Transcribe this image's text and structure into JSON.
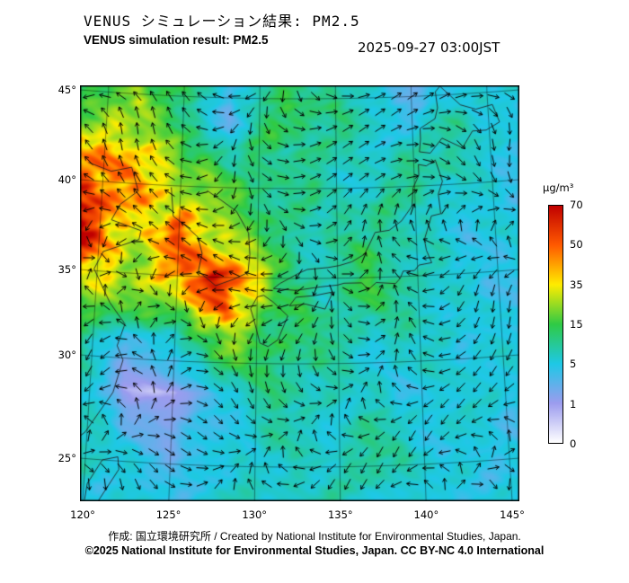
{
  "header": {
    "title_ja": "VENUS シミュレーション結果: PM2.5",
    "title_en": "VENUS simulation result: PM2.5",
    "timestamp": "2025-09-27 03:00JST"
  },
  "footer": {
    "credit": "作成: 国立環境研究所 / Created by National Institute for Environmental Studies, Japan.",
    "license": "©2025 National Institute for Environmental Studies, Japan. CC BY-NC 4.0 International"
  },
  "colorbar": {
    "unit": "µg/m³",
    "ticks": [
      70,
      50,
      35,
      15,
      5,
      1,
      0
    ]
  },
  "axes": {
    "lat_ticks": [
      {
        "label": "45°",
        "value": 45
      },
      {
        "label": "40°",
        "value": 40
      },
      {
        "label": "35°",
        "value": 35
      },
      {
        "label": "30°",
        "value": 30
      },
      {
        "label": "25°",
        "value": 25
      }
    ],
    "lon_ticks": [
      {
        "label": "120°",
        "value": 120
      },
      {
        "label": "125°",
        "value": 125
      },
      {
        "label": "130°",
        "value": 130
      },
      {
        "label": "135°",
        "value": 135
      },
      {
        "label": "140°",
        "value": 140
      },
      {
        "label": "145°",
        "value": 145
      }
    ]
  },
  "chart_data": {
    "type": "heatmap",
    "title": "VENUS simulation result: PM2.5",
    "timestamp": "2025-09-27 03:00JST",
    "variable": "PM2.5 concentration",
    "unit": "µg/m³",
    "legend_position": "right",
    "wind_overlay": true,
    "lon_range": [
      119.5,
      146.5
    ],
    "lat_range": [
      23.0,
      46.5
    ],
    "levels": [
      0,
      1,
      5,
      15,
      35,
      50,
      70
    ],
    "colors": [
      "#ffffff",
      "#9c9cee",
      "#1ec8e6",
      "#2fca45",
      "#ffec00",
      "#ff5a00",
      "#c00000"
    ],
    "grid_lons": [
      119,
      122,
      125,
      128,
      131,
      134,
      137,
      140,
      143,
      146
    ],
    "grid_lats": [
      46.5,
      43.5,
      40.5,
      37.5,
      34.5,
      31.5,
      28.5,
      25.5,
      23.0
    ],
    "values": [
      [
        12,
        22,
        14,
        4,
        9,
        11,
        6,
        3,
        2,
        7
      ],
      [
        16,
        30,
        9,
        3,
        14,
        12,
        7,
        4,
        10,
        5
      ],
      [
        58,
        38,
        24,
        14,
        12,
        9,
        6,
        11,
        7,
        4
      ],
      [
        66,
        34,
        52,
        24,
        10,
        7,
        12,
        8,
        5,
        6
      ],
      [
        30,
        24,
        34,
        68,
        18,
        9,
        15,
        7,
        5,
        4
      ],
      [
        12,
        4,
        8,
        24,
        13,
        10,
        6,
        8,
        6,
        5
      ],
      [
        9,
        1,
        0.5,
        4,
        10,
        8,
        7,
        5,
        6,
        5
      ],
      [
        8,
        5,
        3,
        6,
        8,
        6,
        10,
        6,
        5,
        5
      ],
      [
        6,
        6,
        5,
        7,
        6,
        8,
        6,
        5,
        6,
        4
      ]
    ]
  }
}
